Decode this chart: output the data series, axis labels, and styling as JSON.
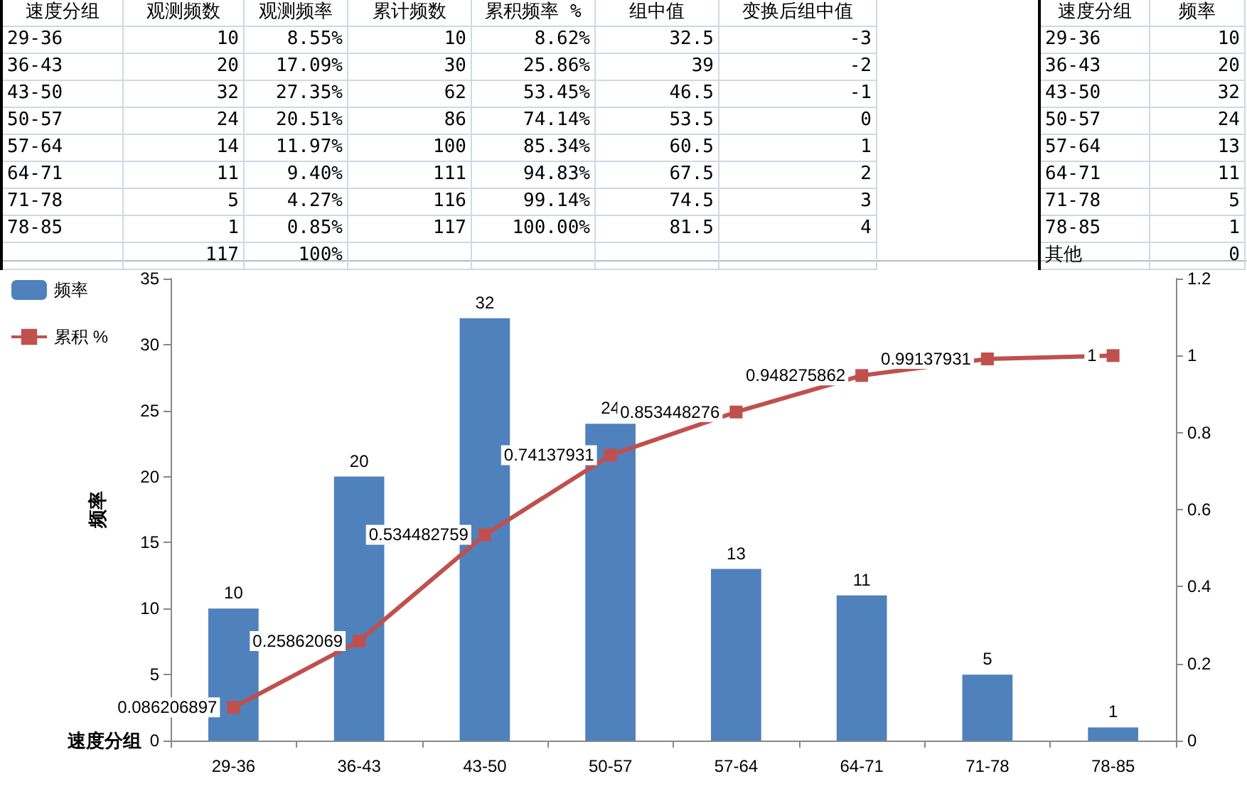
{
  "chart_data": [
    {
      "type": "other",
      "categories": [
        "速度分组",
        "观测频数",
        "观测频率",
        "累计频数",
        "累积频率 %",
        "组中值",
        "变换后组中值"
      ],
      "annotations": [
        "29-36",
        "10",
        "8.55%",
        "10",
        "8.62%",
        "32.5",
        "-3",
        "36-43",
        "20",
        "17.09%",
        "30",
        "25.86%",
        "39",
        "-2",
        "43-50",
        "32",
        "27.35%",
        "62",
        "53.45%",
        "46.5",
        "-1",
        "50-57",
        "24",
        "20.51%",
        "86",
        "74.14%",
        "53.5",
        "0",
        "57-64",
        "14",
        "11.97%",
        "100",
        "85.34%",
        "60.5",
        "1",
        "64-71",
        "11",
        "9.40%",
        "111",
        "94.83%",
        "67.5",
        "2",
        "71-78",
        "5",
        "4.27%",
        "116",
        "99.14%",
        "74.5",
        "3",
        "78-85",
        "1",
        "0.85%",
        "117",
        "100.00%",
        "81.5",
        "4",
        null,
        "117",
        "100%",
        null,
        null,
        null,
        null
      ]
    },
    {
      "type": "other",
      "categories": [
        "速度分组",
        "频率"
      ],
      "annotations": [
        "29-36",
        "10",
        "36-43",
        "20",
        "43-50",
        "32",
        "50-57",
        "24",
        "57-64",
        "13",
        "64-71",
        "11",
        "71-78",
        "5",
        "78-85",
        "1",
        "其他",
        "0"
      ]
    },
    {
      "type": "bar",
      "categories": [
        "29-36",
        "36-43",
        "43-50",
        "50-57",
        "57-64",
        "64-71",
        "71-78",
        "78-85"
      ],
      "series": [
        {
          "name": "频率",
          "type": "bar",
          "color": "#4f81bd",
          "values": [
            10,
            20,
            32,
            24,
            13,
            11,
            5,
            1
          ]
        },
        {
          "name": "累积 %",
          "type": "line",
          "axis": "y2",
          "color": "#c0504d",
          "values": [
            0.086206897,
            0.25862069,
            0.534482759,
            0.74137931,
            0.853448276,
            0.948275862,
            0.99137931,
            1
          ]
        }
      ],
      "xlabel": "速度分组",
      "ylabel": "频率",
      "ylim": [
        0,
        35
      ],
      "yticks": [
        0,
        5,
        10,
        15,
        20,
        25,
        30,
        35
      ],
      "y2lim": [
        0,
        1.2
      ],
      "y2ticks": [
        0,
        0.2,
        0.4,
        0.6,
        0.8,
        1,
        1.2
      ],
      "data_labels": true,
      "legend": "top left",
      "marker": "square",
      "grid": false
    }
  ]
}
